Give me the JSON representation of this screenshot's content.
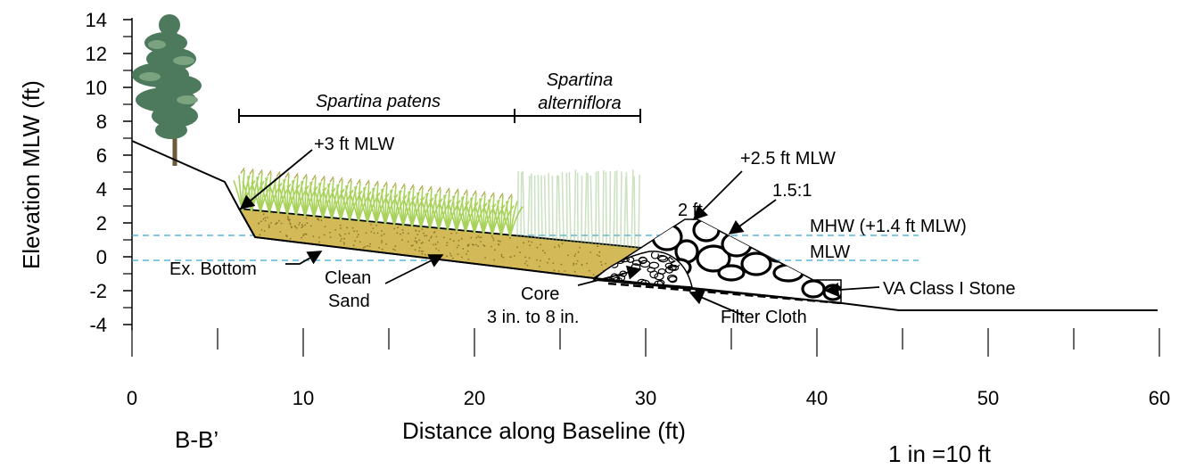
{
  "axes": {
    "y_title": "Elevation MLW (ft)",
    "x_title": "Distance along Baseline (ft)",
    "y_ticks": [
      "14",
      "12",
      "10",
      "8",
      "6",
      "4",
      "2",
      "0",
      "-2",
      "-4"
    ],
    "x_ticks": [
      "0",
      "10",
      "20",
      "30",
      "40",
      "50",
      "60"
    ]
  },
  "section_label": "B-B’",
  "scale_label": "1 in =10 ft",
  "zones": {
    "patens": "Spartina patens",
    "alterniflora_line1": "Spartina",
    "alterniflora_line2": "alterniflora"
  },
  "annotations": {
    "plus3": "+3 ft MLW",
    "plus25": "+2.5 ft MLW",
    "crest_width": "2 ft",
    "slope": "1.5:1",
    "mhw": "MHW (+1.4 ft MLW)",
    "mlw": "MLW",
    "ex_bottom": "Ex. Bottom",
    "clean": "Clean",
    "sand": "Sand",
    "core": "Core",
    "core_size": "3 in. to 8 in.",
    "filter_cloth": "Filter Cloth",
    "stone": "VA Class I Stone"
  },
  "colors": {
    "sand_fill": "#d4b958",
    "water_line": "#3aa6d6",
    "grass": "#a8d25a",
    "tree": "#4d7a5c",
    "stone_fill": "#ffffff"
  }
}
